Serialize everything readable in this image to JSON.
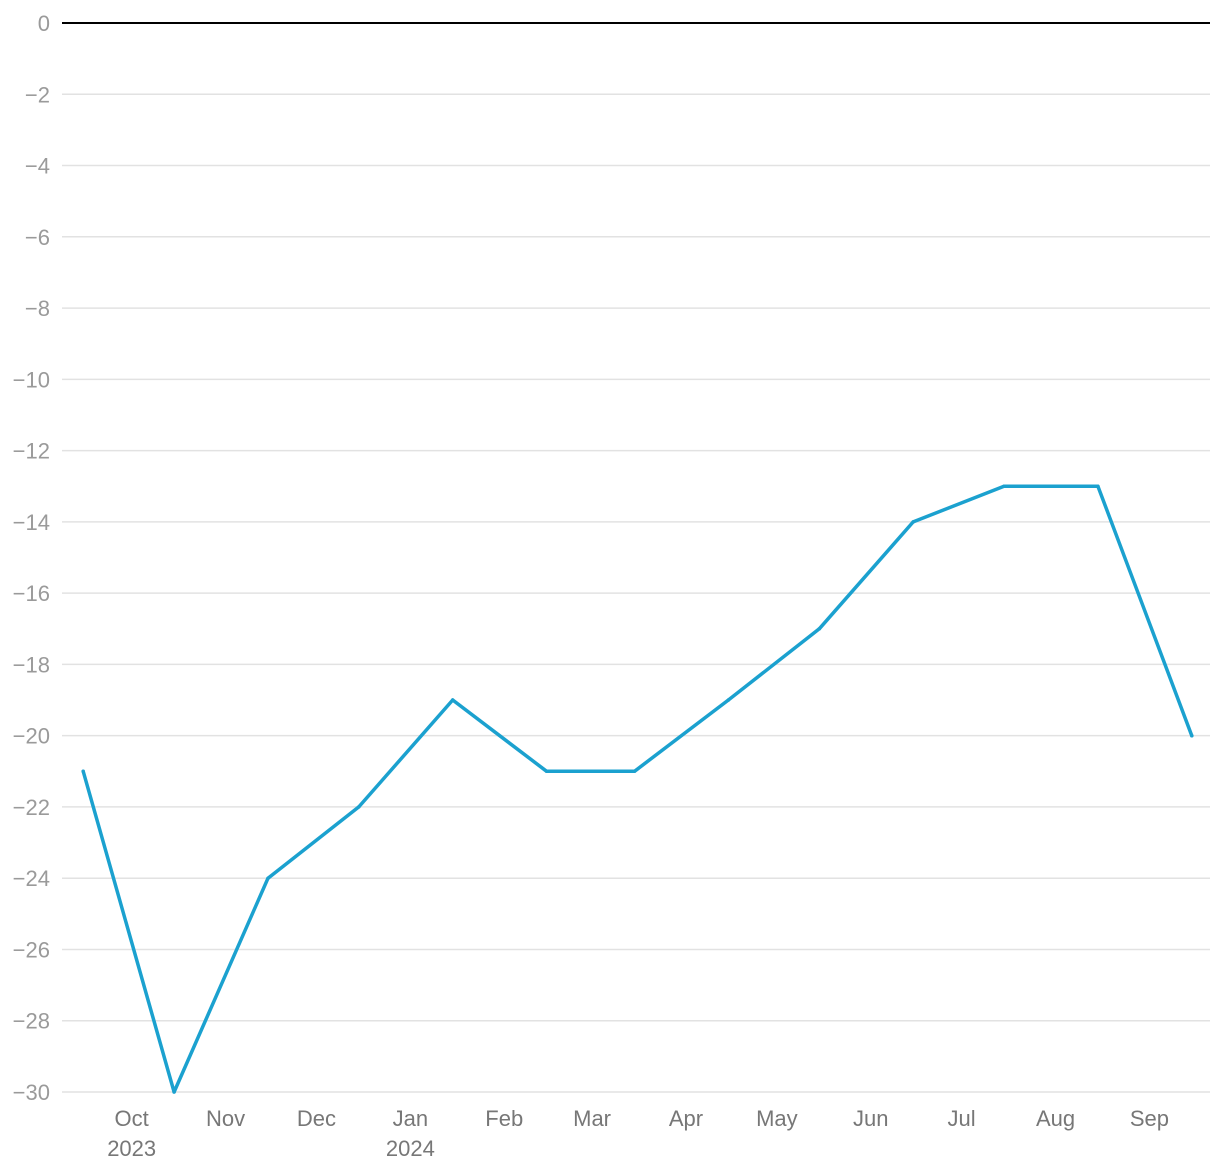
{
  "chart_data": {
    "type": "line",
    "title": "",
    "xlabel": "",
    "ylabel": "",
    "ylim": [
      -30,
      0
    ],
    "y_ticks": [
      0,
      -2,
      -4,
      -6,
      -8,
      -10,
      -12,
      -14,
      -16,
      -18,
      -20,
      -22,
      -24,
      -26,
      -28,
      -30
    ],
    "y_tick_labels": [
      "0",
      "−2",
      "−4",
      "−6",
      "−8",
      "−10",
      "−12",
      "−14",
      "−16",
      "−18",
      "−20",
      "−22",
      "−24",
      "−26",
      "−28",
      "−30"
    ],
    "x_range": [
      "2023-09-22",
      "2024-10-05"
    ],
    "x_ticks": [
      {
        "date": "2023-10-15",
        "label": "Oct",
        "sublabel": "2023"
      },
      {
        "date": "2023-11-15",
        "label": "Nov",
        "sublabel": ""
      },
      {
        "date": "2023-12-15",
        "label": "Dec",
        "sublabel": ""
      },
      {
        "date": "2024-01-15",
        "label": "Jan",
        "sublabel": "2024"
      },
      {
        "date": "2024-02-15",
        "label": "Feb",
        "sublabel": ""
      },
      {
        "date": "2024-03-15",
        "label": "Mar",
        "sublabel": ""
      },
      {
        "date": "2024-04-15",
        "label": "Apr",
        "sublabel": ""
      },
      {
        "date": "2024-05-15",
        "label": "May",
        "sublabel": ""
      },
      {
        "date": "2024-06-15",
        "label": "Jun",
        "sublabel": ""
      },
      {
        "date": "2024-07-15",
        "label": "Jul",
        "sublabel": ""
      },
      {
        "date": "2024-08-15",
        "label": "Aug",
        "sublabel": ""
      },
      {
        "date": "2024-09-15",
        "label": "Sep",
        "sublabel": ""
      }
    ],
    "grid": true,
    "series": [
      {
        "color": "#1ba1cf",
        "points": [
          {
            "x": "2023-09-29",
            "y": -21
          },
          {
            "x": "2023-10-29",
            "y": -30
          },
          {
            "x": "2023-11-29",
            "y": -24
          },
          {
            "x": "2023-12-29",
            "y": -22
          },
          {
            "x": "2024-01-29",
            "y": -19
          },
          {
            "x": "2024-02-29",
            "y": -21
          },
          {
            "x": "2024-03-29",
            "y": -21
          },
          {
            "x": "2024-04-29",
            "y": -19
          },
          {
            "x": "2024-05-29",
            "y": -17
          },
          {
            "x": "2024-06-29",
            "y": -14
          },
          {
            "x": "2024-07-29",
            "y": -13
          },
          {
            "x": "2024-08-29",
            "y": -13
          },
          {
            "x": "2024-09-29",
            "y": -20
          }
        ]
      }
    ]
  }
}
